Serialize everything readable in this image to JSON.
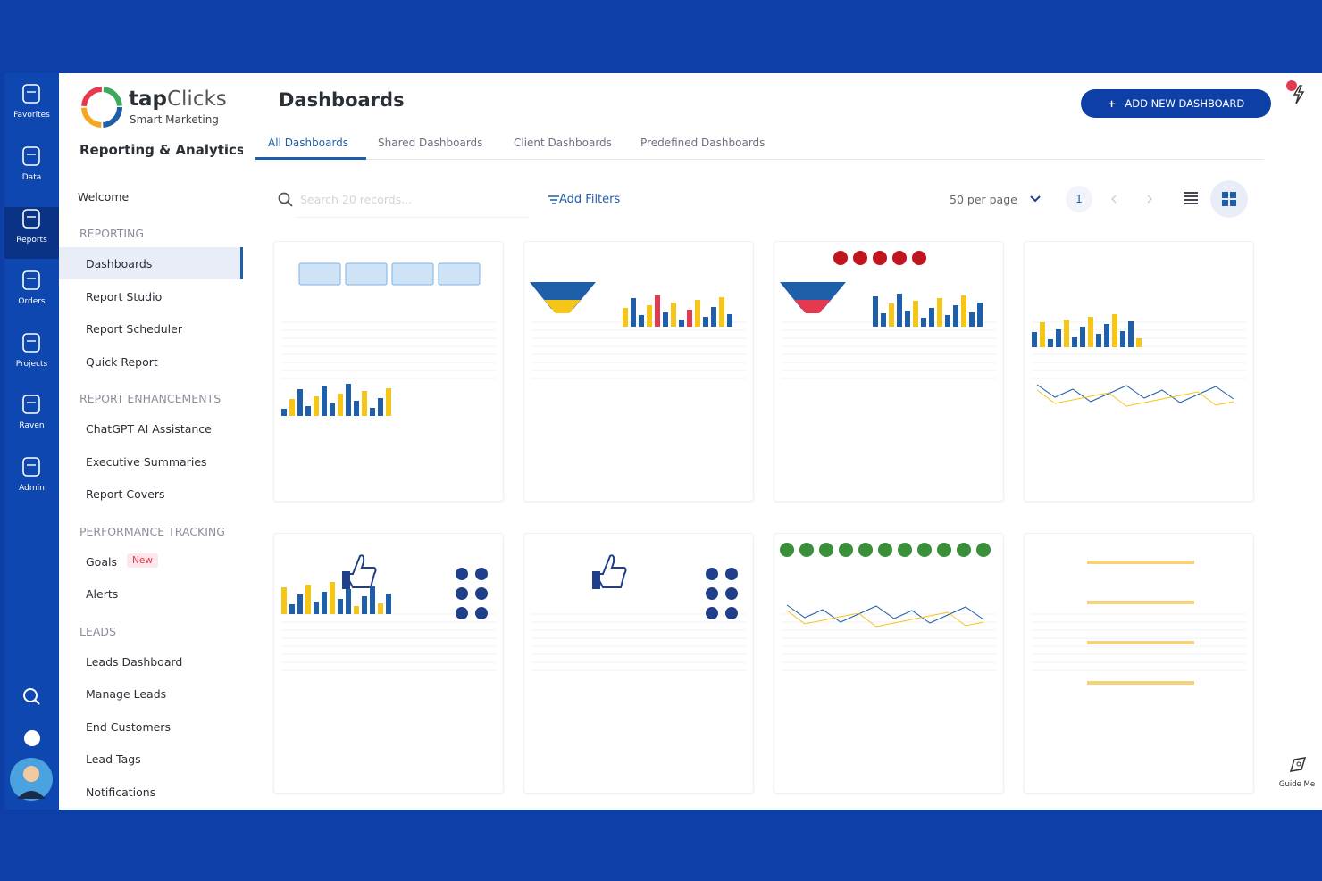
{
  "rail": {
    "items": [
      "Favorites",
      "Data",
      "Reports",
      "Orders",
      "Projects",
      "Raven",
      "Admin"
    ],
    "active": "Reports"
  },
  "guide": "Guide Me",
  "logo": {
    "brand_prefix": "tap",
    "brand_suffix": "Clicks",
    "tagline": "Smart Marketing"
  },
  "sidebar": {
    "product": "Reporting & Analytics",
    "welcome": "Welcome",
    "active": "Dashboards",
    "sections": [
      {
        "title": "REPORTING",
        "items": [
          {
            "label": "Dashboards"
          },
          {
            "label": "Report Studio"
          },
          {
            "label": "Report Scheduler"
          },
          {
            "label": "Quick Report"
          }
        ]
      },
      {
        "title": "REPORT ENHANCEMENTS",
        "items": [
          {
            "label": "ChatGPT AI Assistance"
          },
          {
            "label": "Executive Summaries"
          },
          {
            "label": "Report Covers"
          }
        ]
      },
      {
        "title": "PERFORMANCE TRACKING",
        "items": [
          {
            "label": "Goals",
            "badge": "New"
          },
          {
            "label": "Alerts"
          }
        ]
      },
      {
        "title": "LEADS",
        "items": [
          {
            "label": "Leads Dashboard"
          },
          {
            "label": "Manage Leads"
          },
          {
            "label": "End Customers"
          },
          {
            "label": "Lead Tags"
          },
          {
            "label": "Notifications"
          }
        ]
      }
    ]
  },
  "header": {
    "title": "Dashboards",
    "add_button": {
      "icon": "+",
      "label": "ADD NEW DASHBOARD"
    }
  },
  "tabs": {
    "items": [
      "All Dashboards",
      "Shared Dashboards",
      "Client Dashboards",
      "Predefined Dashboards"
    ],
    "active": "All Dashboards"
  },
  "toolbar": {
    "search_placeholder": "Search 20 records...",
    "filters": "Add Filters",
    "per_page": "50 per page",
    "page": "1"
  }
}
